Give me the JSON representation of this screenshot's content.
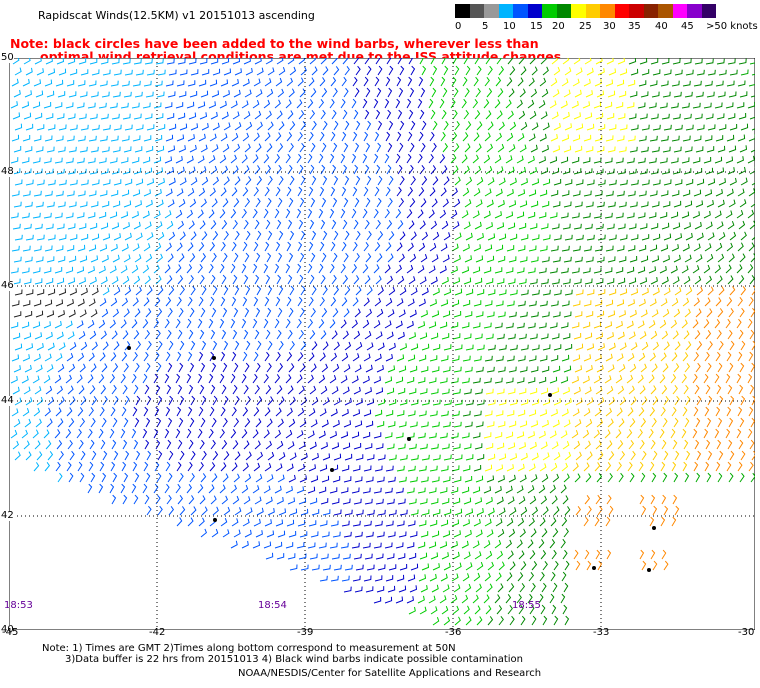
{
  "header": {
    "title": "Rapidscat Winds(12.5KM) v1 20151013 ascending",
    "note_line1": "Note: black circles have been added to the wind barbs, wherever less than",
    "note_line2": "optimal wind retrieval conditions are met due to the ISS attitude changes."
  },
  "legend": {
    "labels": [
      "0",
      "5",
      "10",
      "15",
      "20",
      "25",
      "30",
      "35",
      "40",
      "45",
      ">50 knots"
    ],
    "colors": [
      "#000000",
      "#555555",
      "#999999",
      "#00b4ff",
      "#0055ff",
      "#0000cc",
      "#00cc00",
      "#008800",
      "#ffff00",
      "#ffcc00",
      "#ff8800",
      "#ff0000",
      "#cc0000",
      "#882200",
      "#aa5500",
      "#ff00ff",
      "#8800cc",
      "#330066"
    ]
  },
  "map": {
    "latitudes": [
      "50",
      "48",
      "46",
      "44",
      "42",
      "40"
    ],
    "longitudes": [
      "-45",
      "-42",
      "-39",
      "-36",
      "-33",
      "-30"
    ],
    "times": [
      "18:53",
      "18:54",
      "18:55"
    ]
  },
  "footer": {
    "note_line1": "Note: 1) Times are GMT 2)Times along bottom correspond to measurement at 50N",
    "note_line2": "3)Data buffer is 22 hrs from 20151013 4) Black wind barbs indicate possible contamination",
    "credit": "NOAA/NESDIS/Center for Satellite Applications and Research"
  }
}
